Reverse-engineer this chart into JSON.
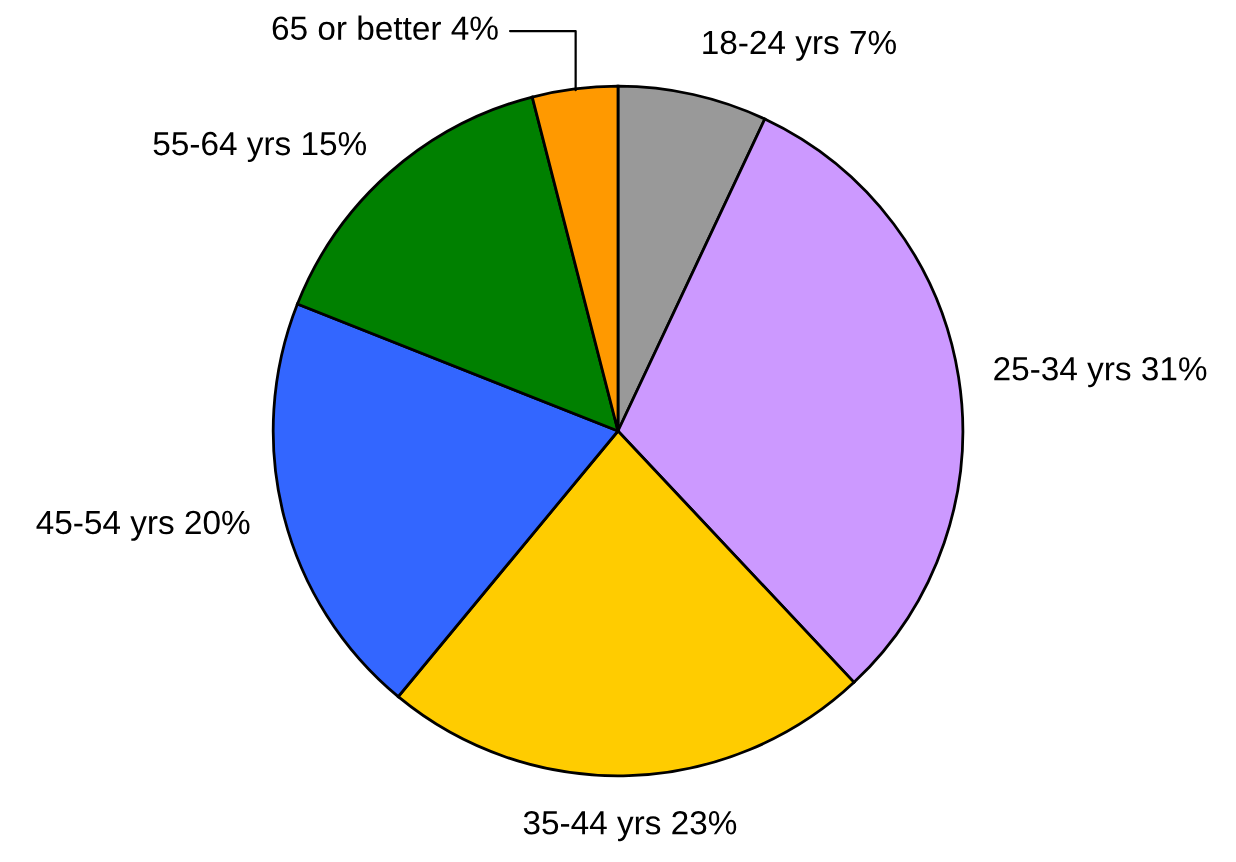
{
  "chart_data": {
    "type": "pie",
    "categories": [
      "18-24 yrs",
      "25-34 yrs",
      "35-44 yrs",
      "45-54 yrs",
      "55-64 yrs",
      "65 or better"
    ],
    "values": [
      7,
      31,
      23,
      20,
      15,
      4
    ],
    "value_labels": [
      "7%",
      "31%",
      "23%",
      "20%",
      "15%",
      "4%"
    ],
    "colors": [
      "#999999",
      "#cc99ff",
      "#ffcc00",
      "#3366ff",
      "#008000",
      "#ff9900"
    ],
    "legend": false
  }
}
